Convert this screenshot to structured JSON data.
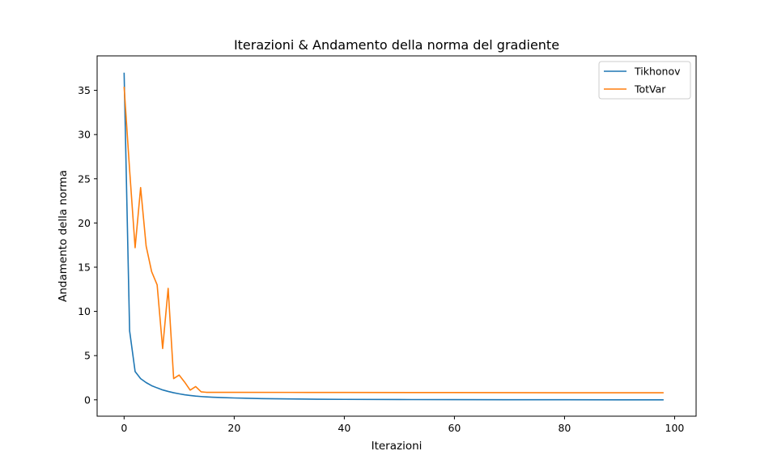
{
  "chart_data": {
    "type": "line",
    "title": "Iterazioni & Andamento della norma del gradiente",
    "xlabel": "Iterazioni",
    "ylabel": "Andamento della norma",
    "xlim": [
      -4.9,
      103.9
    ],
    "ylim": [
      -1.85,
      38.9
    ],
    "xticks": [
      0,
      20,
      40,
      60,
      80,
      100
    ],
    "yticks": [
      0,
      5,
      10,
      15,
      20,
      25,
      30,
      35
    ],
    "grid": false,
    "legend_position": "top-right",
    "series": [
      {
        "name": "Tikhonov",
        "color": "#1f77b4",
        "x": [
          0,
          1,
          2,
          3,
          4,
          5,
          6,
          7,
          8,
          9,
          10,
          11,
          12,
          13,
          14,
          15,
          16,
          17,
          18,
          20,
          22,
          25,
          30,
          35,
          40,
          50,
          60,
          70,
          80,
          90,
          98
        ],
        "y": [
          37.0,
          7.8,
          3.2,
          2.4,
          1.95,
          1.6,
          1.35,
          1.12,
          0.95,
          0.8,
          0.68,
          0.57,
          0.49,
          0.42,
          0.37,
          0.33,
          0.3,
          0.27,
          0.25,
          0.21,
          0.18,
          0.14,
          0.1,
          0.07,
          0.05,
          0.03,
          0.02,
          0.01,
          0.01,
          0.0,
          0.0
        ]
      },
      {
        "name": "TotVar",
        "color": "#ff7f0e",
        "x": [
          0,
          1,
          2,
          3,
          4,
          5,
          6,
          7,
          8,
          9,
          10,
          11,
          12,
          13,
          14,
          15,
          16,
          20,
          30,
          40,
          60,
          80,
          98
        ],
        "y": [
          35.4,
          26.0,
          17.2,
          24.0,
          17.4,
          14.5,
          13.0,
          5.8,
          12.6,
          2.4,
          2.8,
          2.0,
          1.1,
          1.5,
          0.9,
          0.85,
          0.85,
          0.85,
          0.84,
          0.83,
          0.82,
          0.8,
          0.8
        ]
      }
    ]
  }
}
